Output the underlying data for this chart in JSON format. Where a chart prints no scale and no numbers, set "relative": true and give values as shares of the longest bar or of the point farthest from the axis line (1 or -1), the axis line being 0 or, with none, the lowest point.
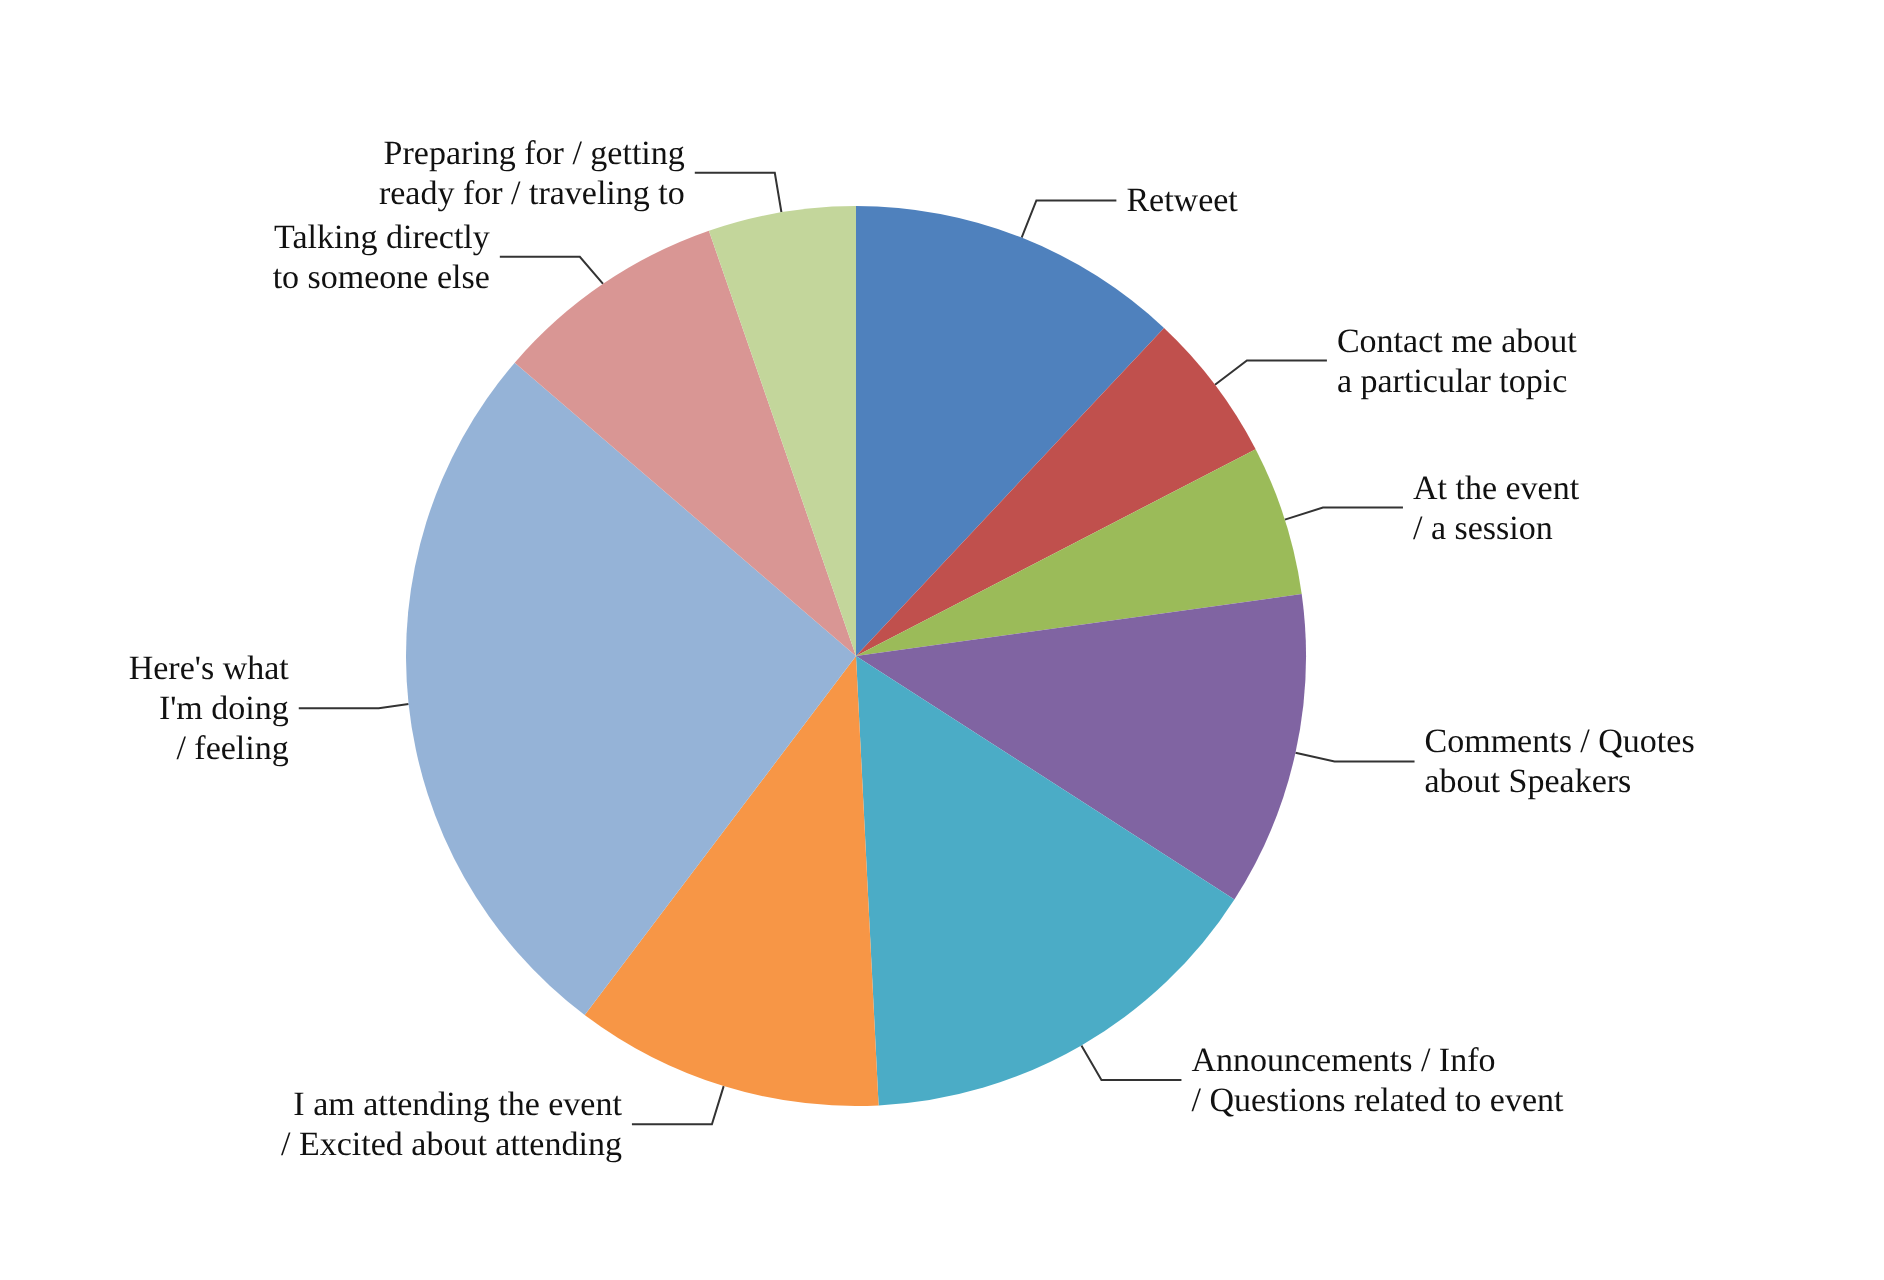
{
  "chart_data": {
    "type": "pie",
    "relative": true,
    "categories": [
      "Retweet",
      "Contact me about\na particular topic",
      "At the event\n/ a session",
      "Comments / Quotes\nabout Speakers",
      "Announcements / Info\n/ Questions related to event",
      "I am attending the event\n/ Excited about attending",
      "Here's what\nI'm doing\n/ feeling",
      "Talking directly\nto someone else",
      "Preparing for / getting\nready for / traveling to"
    ],
    "values": [
      12.0,
      5.4,
      5.4,
      11.3,
      15.1,
      11.1,
      26.0,
      8.4,
      5.3
    ],
    "colors": [
      "#4f81bd",
      "#c0504d",
      "#9bbb59",
      "#8064a2",
      "#4bacc6",
      "#f79646",
      "#95b3d7",
      "#d99694",
      "#c3d69b"
    ],
    "legend": false
  }
}
